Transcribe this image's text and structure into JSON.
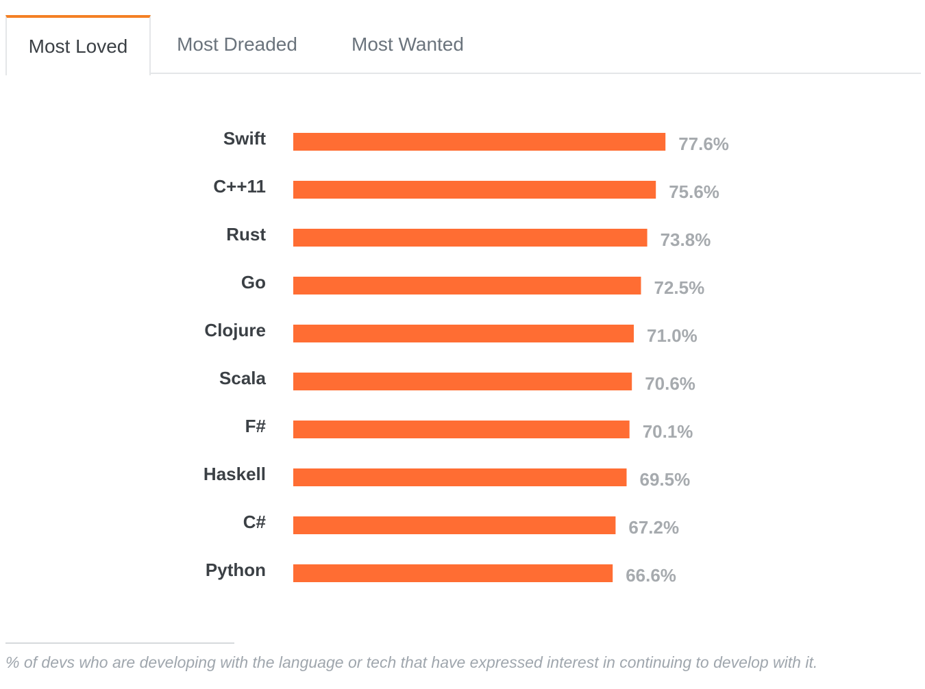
{
  "tabs": [
    {
      "label": "Most Loved",
      "active": true
    },
    {
      "label": "Most Dreaded",
      "active": false
    },
    {
      "label": "Most Wanted",
      "active": false
    }
  ],
  "colors": {
    "accent": "#f48024",
    "bar": "#ff6d33",
    "value_text": "#a6aaae",
    "category_text": "#3b4045"
  },
  "chart_data": {
    "type": "bar",
    "orientation": "horizontal",
    "categories": [
      "Swift",
      "C++11",
      "Rust",
      "Go",
      "Clojure",
      "Scala",
      "F#",
      "Haskell",
      "C#",
      "Python"
    ],
    "values": [
      77.6,
      75.6,
      73.8,
      72.5,
      71.0,
      70.6,
      70.1,
      69.5,
      67.2,
      66.6
    ],
    "value_labels": [
      "77.6%",
      "75.6%",
      "73.8%",
      "72.5%",
      "71.0%",
      "70.6%",
      "70.1%",
      "69.5%",
      "67.2%",
      "66.6%"
    ],
    "title": "",
    "xlabel": "",
    "ylabel": "",
    "xlim": [
      0,
      100
    ],
    "grid": false,
    "legend": "none"
  },
  "footnote": "% of devs who are developing with the language or tech that have expressed interest in continuing to develop with it."
}
